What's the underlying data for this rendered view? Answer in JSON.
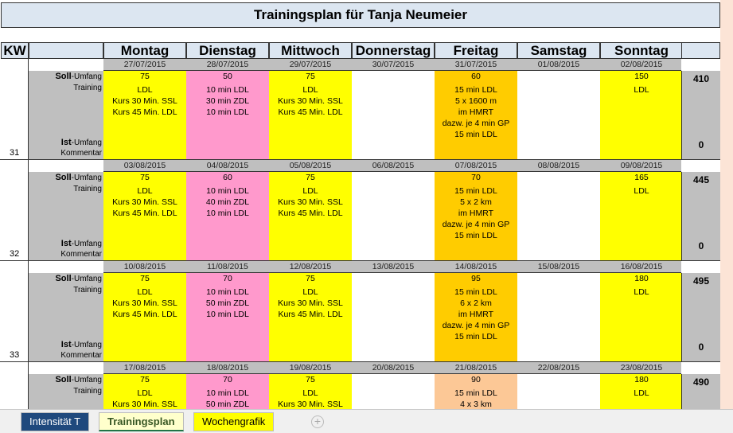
{
  "title": "Trainingsplan für Tanja Neumeier",
  "header": {
    "kw": "KW",
    "days": [
      "Montag",
      "Dienstag",
      "Mittwoch",
      "Donnerstag",
      "Freitag",
      "Samstag",
      "Sonntag"
    ]
  },
  "labels": {
    "soll_bold": "Soll",
    "soll_rest": "-Umfang",
    "training": "Training",
    "ist_bold": "Ist",
    "ist_rest": "-Umfang",
    "kommentar": "Kommentar"
  },
  "colors": {
    "yellow": "#ffff00",
    "pink": "#ff99cc",
    "orange": "#ffcc00",
    "peach": "#fcc896",
    "white": "#ffffff"
  },
  "weeks": [
    {
      "kw": "31",
      "total": "410",
      "ist_total": "0",
      "dates": [
        "27/07/2015",
        "28/07/2015",
        "29/07/2015",
        "30/07/2015",
        "31/07/2015",
        "01/08/2015",
        "02/08/2015"
      ],
      "days": [
        {
          "color": "yellow",
          "lines": [
            "75",
            "LDL",
            "Kurs 30 Min. SSL",
            "Kurs 45 Min. LDL"
          ]
        },
        {
          "color": "pink",
          "lines": [
            "50",
            "10 min LDL",
            "30 min ZDL",
            "10 min LDL"
          ]
        },
        {
          "color": "yellow",
          "lines": [
            "75",
            "LDL",
            "Kurs 30 Min. SSL",
            "Kurs 45 Min. LDL"
          ]
        },
        {
          "color": "white",
          "lines": []
        },
        {
          "color": "orange",
          "lines": [
            "60",
            "15 min LDL",
            "5 x 1600 m",
            "im HMRT",
            "dazw. je 4 min GP",
            "15 min LDL"
          ]
        },
        {
          "color": "white",
          "lines": []
        },
        {
          "color": "yellow",
          "lines": [
            "150",
            "LDL"
          ]
        }
      ]
    },
    {
      "kw": "32",
      "total": "445",
      "ist_total": "0",
      "dates": [
        "03/08/2015",
        "04/08/2015",
        "05/08/2015",
        "06/08/2015",
        "07/08/2015",
        "08/08/2015",
        "09/08/2015"
      ],
      "days": [
        {
          "color": "yellow",
          "lines": [
            "75",
            "LDL",
            "Kurs 30 Min. SSL",
            "Kurs 45 Min. LDL"
          ]
        },
        {
          "color": "pink",
          "lines": [
            "60",
            "10 min LDL",
            "40 min ZDL",
            "10 min LDL"
          ]
        },
        {
          "color": "yellow",
          "lines": [
            "75",
            "LDL",
            "Kurs 30 Min. SSL",
            "Kurs 45 Min. LDL"
          ]
        },
        {
          "color": "white",
          "lines": []
        },
        {
          "color": "orange",
          "lines": [
            "70",
            "15 min LDL",
            "5 x 2 km",
            "im HMRT",
            "dazw. je 4 min GP",
            "15 min LDL"
          ]
        },
        {
          "color": "white",
          "lines": []
        },
        {
          "color": "yellow",
          "lines": [
            "165",
            "LDL"
          ]
        }
      ]
    },
    {
      "kw": "33",
      "total": "495",
      "ist_total": "0",
      "dates": [
        "10/08/2015",
        "11/08/2015",
        "12/08/2015",
        "13/08/2015",
        "14/08/2015",
        "15/08/2015",
        "16/08/2015"
      ],
      "days": [
        {
          "color": "yellow",
          "lines": [
            "75",
            "LDL",
            "Kurs 30 Min. SSL",
            "Kurs 45 Min. LDL"
          ]
        },
        {
          "color": "pink",
          "lines": [
            "70",
            "10 min LDL",
            "50 min ZDL",
            "10 min LDL"
          ]
        },
        {
          "color": "yellow",
          "lines": [
            "75",
            "LDL",
            "Kurs 30 Min. SSL",
            "Kurs 45 Min. LDL"
          ]
        },
        {
          "color": "white",
          "lines": []
        },
        {
          "color": "orange",
          "lines": [
            "95",
            "15 min LDL",
            "6 x 2 km",
            "im HMRT",
            "dazw. je 4 min GP",
            "15 min LDL"
          ]
        },
        {
          "color": "white",
          "lines": []
        },
        {
          "color": "yellow",
          "lines": [
            "180",
            "LDL"
          ]
        }
      ]
    },
    {
      "kw": "",
      "total": "490",
      "ist_total": "",
      "dates": [
        "17/08/2015",
        "18/08/2015",
        "19/08/2015",
        "20/08/2015",
        "21/08/2015",
        "22/08/2015",
        "23/08/2015"
      ],
      "days": [
        {
          "color": "yellow",
          "lines": [
            "75",
            "LDL",
            "Kurs 30 Min. SSL"
          ]
        },
        {
          "color": "pink",
          "lines": [
            "70",
            "10 min LDL",
            "50 min ZDL"
          ]
        },
        {
          "color": "yellow",
          "lines": [
            "75",
            "LDL",
            "Kurs 30 Min. SSL"
          ]
        },
        {
          "color": "white",
          "lines": []
        },
        {
          "color": "peach",
          "lines": [
            "90",
            "15 min LDL",
            "4 x 3 km"
          ]
        },
        {
          "color": "white",
          "lines": []
        },
        {
          "color": "yellow",
          "lines": [
            "180",
            "LDL"
          ]
        }
      ]
    }
  ],
  "tabs": [
    {
      "label": "Intensität T"
    },
    {
      "label": "Trainingsplan"
    },
    {
      "label": "Wochengrafik"
    }
  ]
}
